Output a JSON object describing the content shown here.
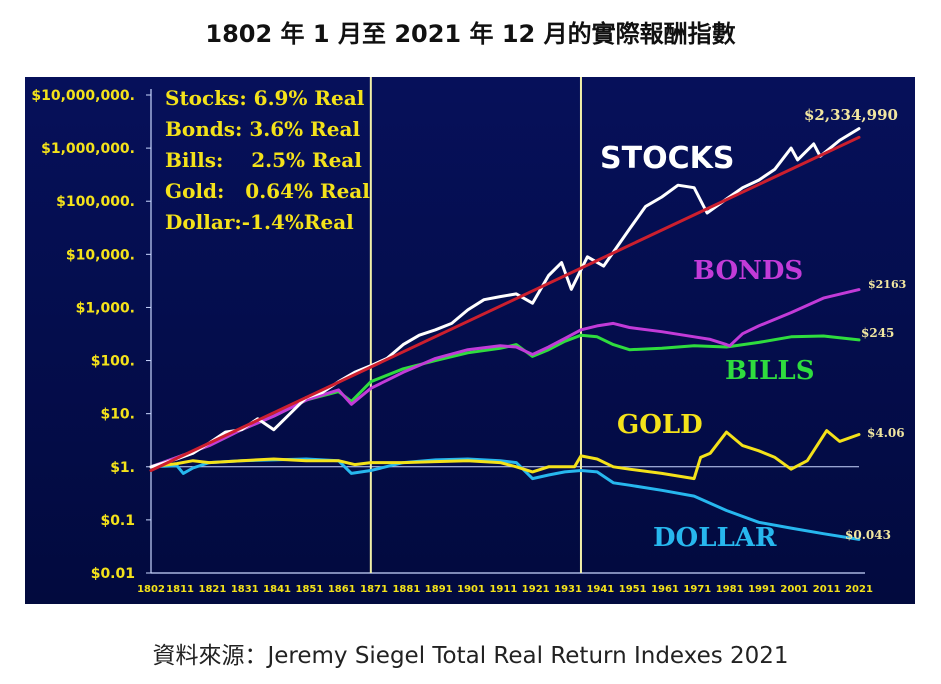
{
  "page": {
    "title": "1802 年 1 月至 2021 年 12 月的實際報酬指數",
    "source": "資料來源：Jeremy Siegel Total Real Return Indexes 2021"
  },
  "legend_box": [
    "Stocks: 6.9% Real",
    "Bonds: 3.6% Real",
    "Bills:    2.5% Real",
    "Gold:   0.64% Real",
    "Dollar:-1.4%Real"
  ],
  "colors": {
    "background_top": "#06105a",
    "background_bottom": "#020a3e",
    "stocks": "#ffffff",
    "trend": "#cc1f2e",
    "bonds": "#c23bd8",
    "bills": "#2fdc3e",
    "gold": "#f4e21a",
    "dollar": "#27b7ee",
    "axis_text": "#f4e21a",
    "vline": "#f1f0a8"
  },
  "chart_data": {
    "type": "line",
    "y_scale": "log",
    "ylim": [
      0.01,
      10000000
    ],
    "xlim": [
      1802,
      2021
    ],
    "y_tick_labels": [
      "$10,000,000.",
      "$1,000,000.",
      "$100,000.",
      "$10,000.",
      "$1,000.",
      "$100.",
      "$10.",
      "$1.",
      "$0.1",
      "$0.01"
    ],
    "y_tick_values": [
      10000000,
      1000000,
      100000,
      10000,
      1000,
      100,
      10,
      1,
      0.1,
      0.01
    ],
    "x_tick_labels": [
      "1802",
      "1811",
      "1821",
      "1831",
      "1841",
      "1851",
      "1861",
      "1871",
      "1881",
      "1891",
      "1901",
      "1911",
      "1921",
      "1931",
      "1941",
      "1951",
      "1961",
      "1971",
      "1981",
      "1991",
      "2001",
      "2011",
      "2021"
    ],
    "vertical_lines": [
      1870,
      1935
    ],
    "series": [
      {
        "name": "STOCKS",
        "end_label": "$2,334,990",
        "color": "#ffffff",
        "x": [
          1802,
          1810,
          1815,
          1820,
          1825,
          1830,
          1835,
          1840,
          1845,
          1850,
          1855,
          1860,
          1865,
          1870,
          1875,
          1880,
          1885,
          1890,
          1895,
          1900,
          1905,
          1910,
          1915,
          1920,
          1925,
          1929,
          1932,
          1937,
          1942,
          1950,
          1955,
          1960,
          1965,
          1970,
          1974,
          1980,
          1985,
          1990,
          1995,
          2000,
          2002,
          2007,
          2009,
          2015,
          2021
        ],
        "y": [
          1,
          1.4,
          1.8,
          2.8,
          4.5,
          5,
          8,
          5,
          10,
          20,
          25,
          40,
          60,
          80,
          110,
          200,
          300,
          380,
          500,
          900,
          1400,
          1600,
          1800,
          1200,
          4000,
          7000,
          2200,
          9000,
          6000,
          30000,
          80000,
          120000,
          200000,
          180000,
          60000,
          110000,
          180000,
          250000,
          400000,
          1000000,
          600000,
          1200000,
          700000,
          1400000,
          2334990
        ]
      },
      {
        "name": "BONDS",
        "end_label": "$2163",
        "color": "#c23bd8",
        "x": [
          1802,
          1810,
          1820,
          1830,
          1840,
          1850,
          1860,
          1864,
          1870,
          1880,
          1890,
          1900,
          1910,
          1915,
          1920,
          1925,
          1930,
          1935,
          1940,
          1945,
          1950,
          1960,
          1970,
          1975,
          1980,
          1981,
          1985,
          1990,
          2000,
          2010,
          2021
        ],
        "y": [
          1,
          1.5,
          2.5,
          5,
          9,
          18,
          28,
          15,
          30,
          60,
          110,
          160,
          190,
          180,
          130,
          180,
          260,
          380,
          450,
          500,
          420,
          350,
          280,
          250,
          200,
          190,
          320,
          450,
          800,
          1500,
          2163
        ]
      },
      {
        "name": "BILLS",
        "end_label": "$245",
        "color": "#2fdc3e",
        "x": [
          1802,
          1810,
          1820,
          1830,
          1840,
          1850,
          1860,
          1864,
          1870,
          1880,
          1890,
          1900,
          1910,
          1915,
          1920,
          1925,
          1930,
          1935,
          1940,
          1945,
          1950,
          1960,
          1970,
          1980,
          1990,
          2000,
          2010,
          2021
        ],
        "y": [
          1,
          1.5,
          2.5,
          5,
          9,
          18,
          26,
          17,
          40,
          70,
          100,
          140,
          170,
          200,
          120,
          160,
          230,
          300,
          280,
          200,
          160,
          170,
          190,
          180,
          220,
          280,
          290,
          245
        ]
      },
      {
        "name": "GOLD",
        "end_label": "$4.06",
        "color": "#f4e21a",
        "x": [
          1802,
          1810,
          1815,
          1820,
          1830,
          1840,
          1850,
          1860,
          1865,
          1870,
          1880,
          1890,
          1900,
          1910,
          1915,
          1920,
          1925,
          1930,
          1933,
          1935,
          1940,
          1945,
          1950,
          1960,
          1970,
          1972,
          1975,
          1980,
          1985,
          1990,
          1995,
          2000,
          2005,
          2011,
          2015,
          2021
        ],
        "y": [
          1,
          1.15,
          1.3,
          1.2,
          1.3,
          1.4,
          1.3,
          1.3,
          1.1,
          1.2,
          1.2,
          1.25,
          1.3,
          1.2,
          1.0,
          0.8,
          1.0,
          1.0,
          1.0,
          1.6,
          1.4,
          1.0,
          0.9,
          0.75,
          0.6,
          1.5,
          1.8,
          4.5,
          2.5,
          2.0,
          1.5,
          0.9,
          1.3,
          4.8,
          3.0,
          4.06
        ]
      },
      {
        "name": "DOLLAR",
        "end_label": "$0.043",
        "color": "#27b7ee",
        "x": [
          1802,
          1810,
          1812,
          1815,
          1820,
          1830,
          1840,
          1850,
          1860,
          1864,
          1870,
          1880,
          1890,
          1900,
          1910,
          1915,
          1920,
          1925,
          1930,
          1935,
          1940,
          1945,
          1950,
          1960,
          1970,
          1980,
          1990,
          2000,
          2010,
          2021
        ],
        "y": [
          1,
          1.05,
          0.75,
          0.95,
          1.2,
          1.3,
          1.35,
          1.4,
          1.3,
          0.75,
          0.85,
          1.2,
          1.35,
          1.4,
          1.3,
          1.2,
          0.6,
          0.7,
          0.8,
          0.85,
          0.8,
          0.5,
          0.45,
          0.36,
          0.28,
          0.15,
          0.09,
          0.07,
          0.055,
          0.043
        ]
      },
      {
        "name": "",
        "color": "#cc1f2e",
        "x": [
          1802,
          2021
        ],
        "y": [
          0.85,
          1600000
        ]
      }
    ]
  }
}
